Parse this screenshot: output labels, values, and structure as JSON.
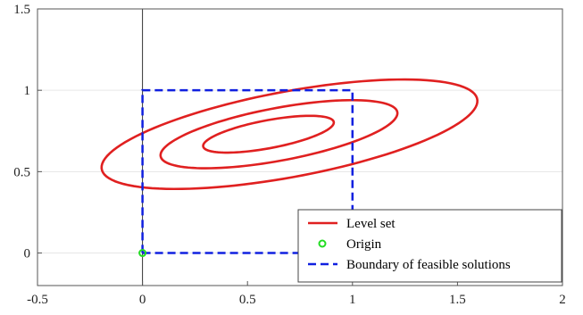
{
  "chart_data": {
    "type": "line",
    "title": "",
    "xlabel": "",
    "ylabel": "",
    "xlim": [
      -0.5,
      2
    ],
    "ylim": [
      -0.2,
      1.5
    ],
    "grid": "horizontal-light",
    "xticks": [
      -0.5,
      0,
      0.5,
      1,
      1.5,
      2
    ],
    "xtick_labels": [
      "-0.5",
      "0",
      "0.5",
      "1",
      "1.5",
      "2"
    ],
    "yticks": [
      0,
      0.5,
      1,
      1.5
    ],
    "ytick_labels": [
      "0",
      "0.5",
      "1",
      "1.5"
    ],
    "legend_position": "bottom-right",
    "series": [
      {
        "name": "Level set",
        "kind": "ellipse-contours",
        "color": "#e02020",
        "contours": [
          {
            "center": [
              0.7,
              0.73
            ],
            "semi_axis_major": 0.92,
            "semi_axis_minor": 0.26,
            "angle_deg": 14
          },
          {
            "center": [
              0.65,
              0.73
            ],
            "semi_axis_major": 0.58,
            "semi_axis_minor": 0.16,
            "angle_deg": 14
          },
          {
            "center": [
              0.6,
              0.73
            ],
            "semi_axis_major": 0.32,
            "semi_axis_minor": 0.085,
            "angle_deg": 14
          }
        ]
      },
      {
        "name": "Origin",
        "kind": "marker",
        "color": "#22dd22",
        "x": [
          0
        ],
        "y": [
          0
        ]
      },
      {
        "name": "Boundary of feasible solutions",
        "kind": "dashed-line",
        "color": "#1020e0",
        "x": [
          0,
          1,
          1,
          0,
          0
        ],
        "y": [
          0,
          0,
          1,
          1,
          0
        ]
      }
    ]
  }
}
